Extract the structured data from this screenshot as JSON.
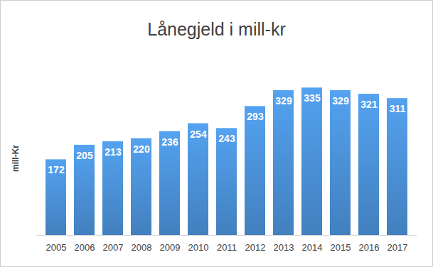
{
  "chart_data": {
    "type": "bar",
    "title": "Lånegjeld i mill-kr",
    "y_label": "mill-Kr",
    "categories": [
      "2005",
      "2006",
      "2007",
      "2008",
      "2009",
      "2010",
      "2011",
      "2012",
      "2013",
      "2014",
      "2015",
      "2016",
      "2017"
    ],
    "values": [
      172,
      205,
      213,
      220,
      236,
      254,
      243,
      293,
      329,
      335,
      329,
      321,
      311
    ],
    "color": "#4a8fd4",
    "ylim": [
      0,
      350
    ],
    "grid": false,
    "data_labels": true,
    "tick_labels": "x"
  }
}
